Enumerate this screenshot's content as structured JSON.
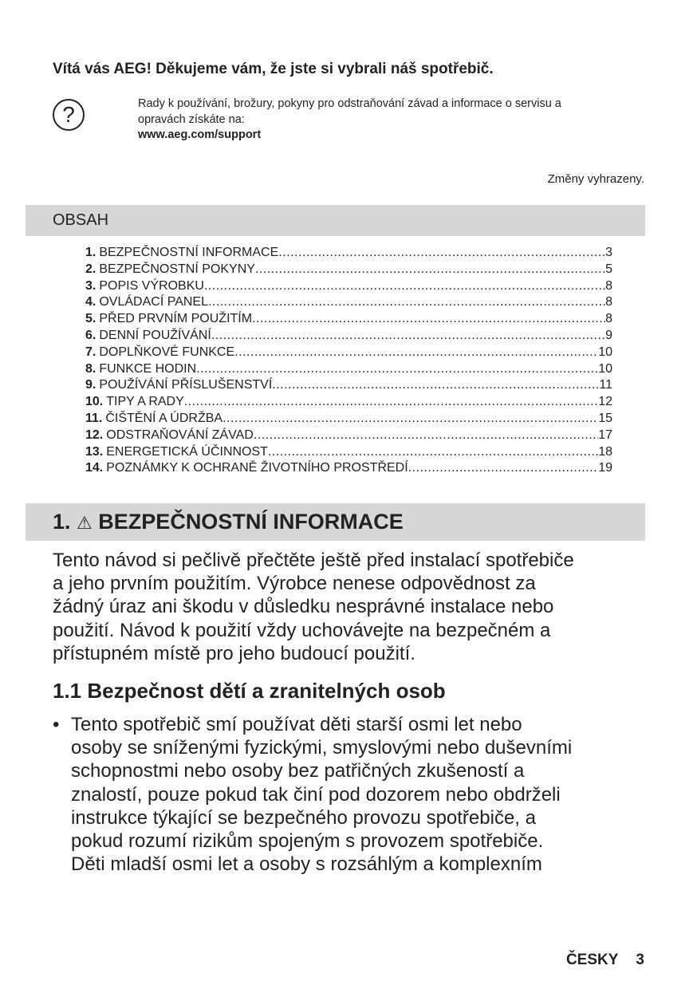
{
  "welcome": "Vítá vás AEG! Děkujeme vám, že jste si vybrali náš spotřebič.",
  "help": {
    "icon": "question-circle-icon",
    "icon_glyph": "?",
    "text_lines": [
      "Rady k používání, brožury, pokyny pro odstraňování závad a informace o servisu a",
      "opravách získáte na:"
    ],
    "url": "www.aeg.com/support"
  },
  "changes_note": "Změny vyhrazeny.",
  "toc": {
    "title": "OBSAH",
    "items": [
      {
        "num": "1.",
        "label": "BEZPEČNOSTNÍ INFORMACE",
        "page": "3"
      },
      {
        "num": "2.",
        "label": "BEZPEČNOSTNÍ POKYNY",
        "page": "5"
      },
      {
        "num": "3.",
        "label": "POPIS VÝROBKU",
        "page": "8"
      },
      {
        "num": "4.",
        "label": "OVLÁDACÍ PANEL",
        "page": "8"
      },
      {
        "num": "5.",
        "label": "PŘED PRVNÍM POUŽITÍM",
        "page": "8"
      },
      {
        "num": "6.",
        "label": "DENNÍ POUŽÍVÁNÍ",
        "page": "9"
      },
      {
        "num": "7.",
        "label": "DOPLŇKOVÉ FUNKCE",
        "page": "10"
      },
      {
        "num": "8.",
        "label": "FUNKCE HODIN",
        "page": "10"
      },
      {
        "num": "9.",
        "label": "POUŽÍVÁNÍ PŘÍSLUŠENSTVÍ",
        "page": "11"
      },
      {
        "num": "10.",
        "label": "TIPY A RADY",
        "page": "12"
      },
      {
        "num": "11.",
        "label": "ČIŠTĚNÍ A ÚDRŽBA",
        "page": "15"
      },
      {
        "num": "12.",
        "label": "ODSTRAŇOVÁNÍ ZÁVAD",
        "page": "17"
      },
      {
        "num": "13.",
        "label": "ENERGETICKÁ ÚČINNOST",
        "page": "18"
      },
      {
        "num": "14.",
        "label": "POZNÁMKY K OCHRANĚ ŽIVOTNÍHO PROSTŘEDÍ",
        "page": "19"
      }
    ]
  },
  "section1": {
    "num": "1.",
    "icon": "warning-triangle-icon",
    "icon_glyph": "⚠",
    "title": "BEZPEČNOSTNÍ INFORMACE",
    "para_lines": [
      "Tento návod si pečlivě přečtěte ještě před instalací spotřebiče",
      "a jeho prvním použitím. Výrobce nenese odpovědnost za",
      "žádný úraz ani škodu v důsledku nesprávné instalace nebo",
      "použití. Návod k použití vždy uchovávejte na bezpečném a",
      "přístupném místě pro jeho budoucí použití."
    ],
    "subsection_title": "1.1 Bezpečnost dětí a zranitelných osob",
    "bullet_glyph": "•",
    "bullet_lines": [
      "Tento spotřebič smí používat děti starší osmi let nebo",
      "osoby se sníženými fyzickými, smyslovými nebo duševními",
      "schopnostmi nebo osoby bez patřičných zkušeností a",
      "znalostí, pouze pokud tak činí pod dozorem nebo obdrželi",
      "instrukce týkající se bezpečného provozu spotřebiče, a",
      "pokud rozumí rizikům spojeným s provozem spotřebiče.",
      "Děti mladší osmi let a osoby s rozsáhlým a komplexním"
    ]
  },
  "footer": {
    "language": "ČESKY",
    "page": "3"
  }
}
